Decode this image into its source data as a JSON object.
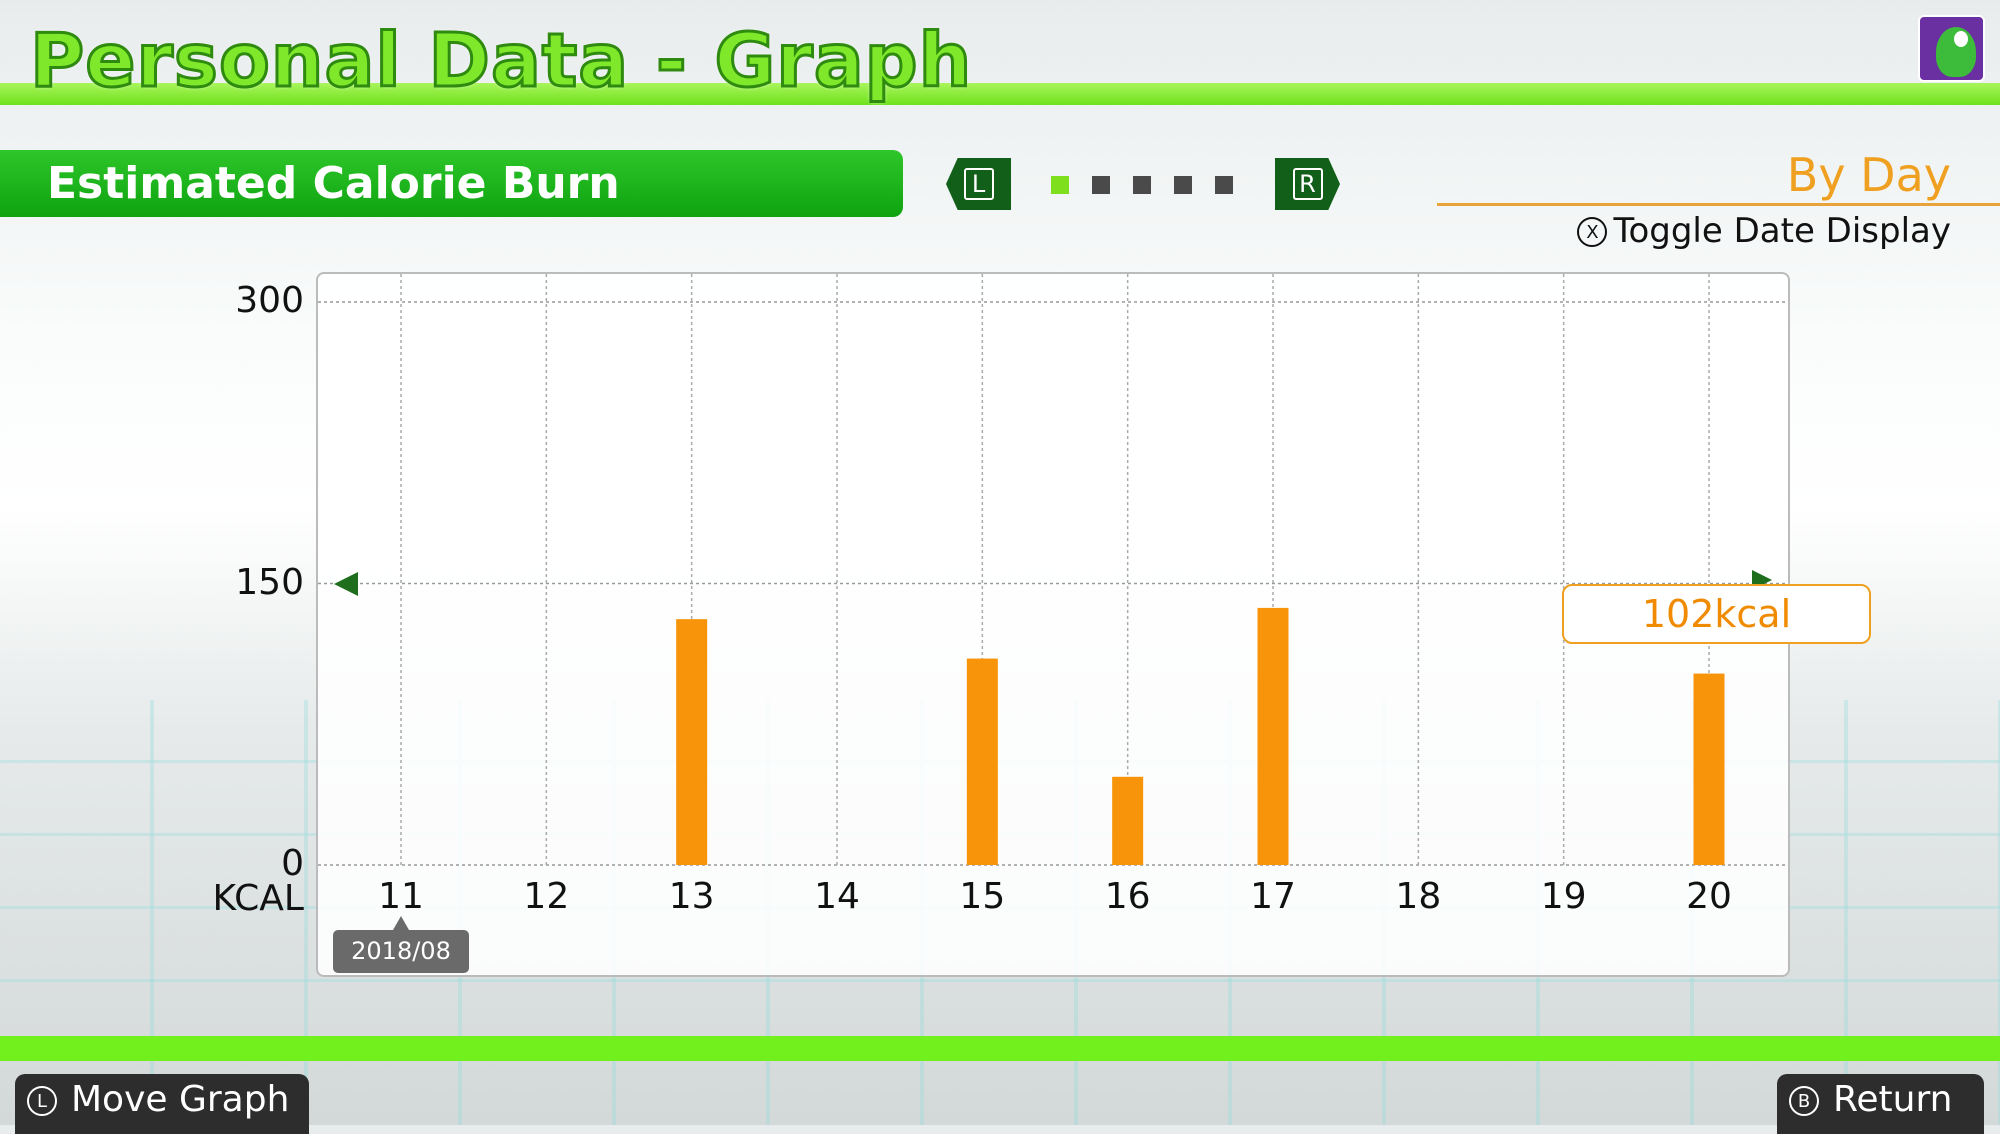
{
  "header": {
    "title": "Personal Data  - Graph",
    "avatar": "yoshi-avatar"
  },
  "section": {
    "label": "Estimated Calorie Burn",
    "page_buttons": [
      "L",
      "R"
    ],
    "pages": 5,
    "active_page": 1
  },
  "mode": {
    "label": "By Day",
    "toggle_button": "X",
    "toggle_label": "Toggle Date Display"
  },
  "chart_data": {
    "type": "bar",
    "ylabel": "KCAL",
    "ylim": [
      0,
      300
    ],
    "yticks": [
      "300",
      "150",
      "0"
    ],
    "categories": [
      "11",
      "12",
      "13",
      "14",
      "15",
      "16",
      "17",
      "18",
      "19",
      "20"
    ],
    "values": [
      0,
      0,
      131,
      0,
      110,
      47,
      137,
      0,
      0,
      102
    ],
    "date_tag": "2018/08",
    "selected": {
      "category": "20",
      "label": "102kcal"
    },
    "bar_color": "#f7940a",
    "grid": true
  },
  "footer": {
    "move": {
      "button": "L",
      "label": "Move Graph"
    },
    "return": {
      "button": "B",
      "label": "Return"
    }
  }
}
